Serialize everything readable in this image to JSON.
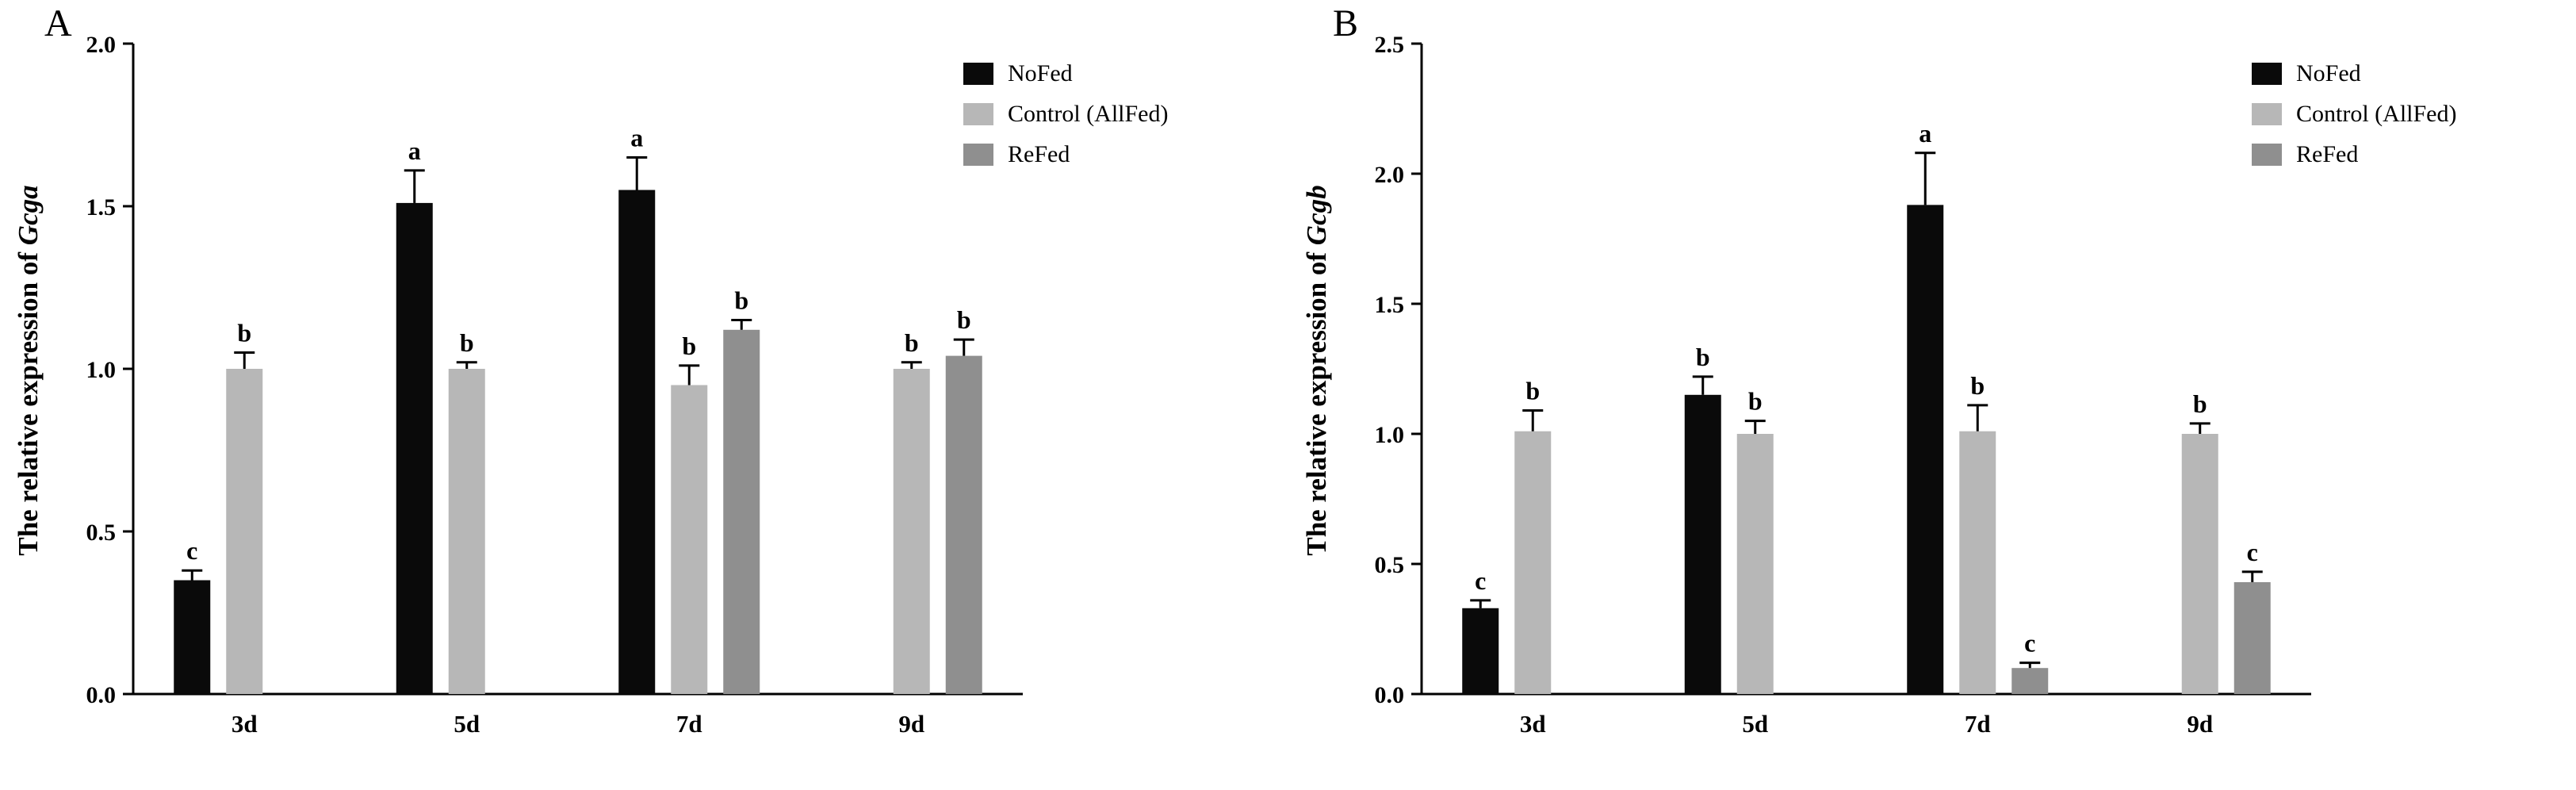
{
  "figure": {
    "background": "#ffffff"
  },
  "legend": {
    "items": [
      {
        "label": "NoFed",
        "color": "#0a0a0a"
      },
      {
        "label": "Control (AllFed)",
        "color": "#b7b7b7"
      },
      {
        "label": "ReFed",
        "color": "#8f8f8f"
      }
    ]
  },
  "chart_data": [
    {
      "type": "bar",
      "panel_label": "A",
      "title": "",
      "ylabel_prefix": "The relative expression of ",
      "ylabel_gene": "Gcga",
      "xlabel": "",
      "categories": [
        "3d",
        "5d",
        "7d",
        "9d"
      ],
      "ylim": [
        0,
        2.0
      ],
      "yticks": [
        0.0,
        0.5,
        1.0,
        1.5,
        2.0
      ],
      "grid": false,
      "legend_position": "top-right",
      "series": [
        {
          "name": "NoFed",
          "color": "#0a0a0a",
          "values": [
            0.35,
            1.51,
            1.55,
            null
          ],
          "errors": [
            0.03,
            0.1,
            0.1,
            null
          ],
          "letters": [
            "c",
            "a",
            "a",
            null
          ]
        },
        {
          "name": "Control (AllFed)",
          "color": "#b7b7b7",
          "values": [
            1.0,
            1.0,
            0.95,
            1.0
          ],
          "errors": [
            0.05,
            0.02,
            0.06,
            0.02
          ],
          "letters": [
            "b",
            "b",
            "b",
            "b"
          ]
        },
        {
          "name": "ReFed",
          "color": "#8f8f8f",
          "values": [
            null,
            null,
            1.12,
            1.04
          ],
          "errors": [
            null,
            null,
            0.03,
            0.05
          ],
          "letters": [
            null,
            null,
            "b",
            "b"
          ]
        }
      ]
    },
    {
      "type": "bar",
      "panel_label": "B",
      "title": "",
      "ylabel_prefix": "The relative expression of ",
      "ylabel_gene": "Gcgb",
      "xlabel": "",
      "categories": [
        "3d",
        "5d",
        "7d",
        "9d"
      ],
      "ylim": [
        0,
        2.5
      ],
      "yticks": [
        0.0,
        0.5,
        1.0,
        1.5,
        2.0,
        2.5
      ],
      "grid": false,
      "legend_position": "top-right",
      "series": [
        {
          "name": "NoFed",
          "color": "#0a0a0a",
          "values": [
            0.33,
            1.15,
            1.88,
            null
          ],
          "errors": [
            0.03,
            0.07,
            0.2,
            null
          ],
          "letters": [
            "c",
            "b",
            "a",
            null
          ]
        },
        {
          "name": "Control (AllFed)",
          "color": "#b7b7b7",
          "values": [
            1.01,
            1.0,
            1.01,
            1.0
          ],
          "errors": [
            0.08,
            0.05,
            0.1,
            0.04
          ],
          "letters": [
            "b",
            "b",
            "b",
            "b"
          ]
        },
        {
          "name": "ReFed",
          "color": "#8f8f8f",
          "values": [
            null,
            null,
            0.1,
            0.43
          ],
          "errors": [
            null,
            null,
            0.02,
            0.04
          ],
          "letters": [
            null,
            null,
            "c",
            "c"
          ]
        }
      ]
    }
  ]
}
